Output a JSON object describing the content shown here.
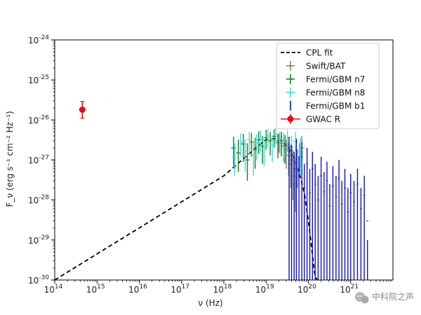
{
  "chart_data": {
    "type": "scatter",
    "title": "",
    "xlabel": "ν (Hz)",
    "ylabel": "F_ν (erg s⁻¹ cm⁻² Hz⁻¹)",
    "xscale": "log",
    "yscale": "log",
    "xlim": [
      100000000000000.0,
      1e+22
    ],
    "ylim": [
      1e-30,
      1e-24
    ],
    "x_tick_exponents": [
      14,
      15,
      16,
      17,
      18,
      19,
      20,
      21
    ],
    "y_tick_exponents": [
      -30,
      -29,
      -28,
      -27,
      -26,
      -25,
      -24
    ],
    "x_tick_base": "10",
    "y_tick_base": "10",
    "grid": false,
    "legend_placement": "top-right",
    "legend": [
      {
        "label": "CPL fit",
        "style": "dashed-line",
        "color": "#000000"
      },
      {
        "label": "Swift/BAT",
        "style": "errorbar-plus",
        "color": "#808080"
      },
      {
        "label": "Fermi/GBM n7",
        "style": "errorbar-plus",
        "color": "#1a7a1a"
      },
      {
        "label": "Fermi/GBM n8",
        "style": "errorbar-plus",
        "color": "#3ae0e0"
      },
      {
        "label": "Fermi/GBM b1",
        "style": "errorbar-dot",
        "color": "#1010c8"
      },
      {
        "label": "GWAC R",
        "style": "errorbar-marker",
        "color": "#e01010"
      }
    ],
    "series": [
      {
        "name": "CPL fit",
        "kind": "line",
        "color": "#000000",
        "x": [
          100000000000000.0,
          1000000000000000.0,
          1e+16,
          1e+17,
          1e+18,
          3e+18,
          6e+18,
          1e+19,
          1.6e+19,
          2.5e+19,
          4e+19,
          6e+19,
          8e+19,
          1e+20,
          1.2e+20,
          1.4e+20,
          1.6e+20
        ],
        "y": [
          1e-30,
          4.5e-30,
          2e-29,
          9e-29,
          4e-28,
          1.1e-27,
          2.1e-27,
          3.2e-27,
          3.4e-27,
          2.9e-27,
          1.5e-27,
          5e-28,
          1.5e-28,
          3e-29,
          6e-30,
          1.5e-30,
          1e-30
        ]
      },
      {
        "name": "Swift/BAT",
        "kind": "errorbar",
        "color": "#808080",
        "x": [
          2e+19,
          2.3e+19,
          2.6e+19,
          3e+19,
          3.4e+19,
          3.8e+19,
          4.3e+19,
          4.9e+19,
          5.5e+19,
          6.2e+19,
          7e+19
        ],
        "y": [
          3e-27,
          2.6e-27,
          2.2e-27,
          1.8e-27,
          1.3e-27,
          8e-28,
          4e-28,
          2.5e-28,
          6e-28,
          1.2e-27,
          2e-27
        ],
        "ylo": [
          1.5e-27,
          1.2e-27,
          9e-28,
          6e-28,
          4e-28,
          2e-28,
          1e-28,
          5e-29,
          2e-28,
          5e-28,
          9e-28
        ],
        "yhi": [
          4.5e-27,
          4e-27,
          3.6e-27,
          3.2e-27,
          2.8e-27,
          2.4e-27,
          1.8e-27,
          1.2e-27,
          1.8e-27,
          2.6e-27,
          4e-27
        ]
      },
      {
        "name": "Fermi/GBM n7",
        "kind": "errorbar",
        "color": "#1a7a1a",
        "x": [
          1.7e+18,
          2.2e+18,
          2.9e+18,
          3.6e+18,
          4.5e+18,
          5.5e+18,
          6.7e+18,
          8.2e+18,
          1e+19,
          1.25e+19,
          1.55e+19,
          1.9e+19,
          2.3e+19,
          2.8e+19
        ],
        "y": [
          2e-27,
          1.5e-27,
          2.5e-27,
          1e-27,
          2.8e-27,
          1.8e-27,
          3.2e-27,
          2.2e-27,
          3.6e-27,
          3e-27,
          3.9e-27,
          2.7e-27,
          3.1e-27,
          2.3e-27
        ],
        "ylo": [
          7e-28,
          5e-28,
          9e-28,
          3e-28,
          1.2e-27,
          6e-28,
          1.4e-27,
          8e-28,
          1.8e-27,
          1.3e-27,
          2e-27,
          1.1e-27,
          1.3e-27,
          8e-28
        ],
        "yhi": [
          3.8e-27,
          3.2e-27,
          4.5e-27,
          2.6e-27,
          4.8e-27,
          3.6e-27,
          5.2e-27,
          4e-27,
          5.6e-27,
          5e-27,
          5.8e-27,
          4.6e-27,
          5e-27,
          4.2e-27
        ]
      },
      {
        "name": "Fermi/GBM n8",
        "kind": "errorbar",
        "color": "#3ae0e0",
        "x": [
          1.8e+18,
          2.5e+18,
          3.2e+18,
          4e+18,
          5e+18,
          6e+18,
          7.4e+18,
          9e+18,
          1.1e+19,
          1.4e+19,
          1.7e+19,
          2.1e+19,
          2.6e+19,
          3.2e+19,
          4e+19,
          5e+19,
          6.5e+19
        ],
        "y": [
          1.2e-27,
          2.8e-27,
          1.6e-27,
          3.2e-27,
          1.3e-27,
          2.6e-27,
          3.5e-27,
          1.9e-27,
          4e-27,
          2.4e-27,
          4.3e-27,
          3.3e-27,
          2.8e-27,
          3.6e-27,
          2.1e-27,
          2.9e-27,
          1.6e-27
        ],
        "ylo": [
          4e-28,
          1.2e-27,
          5e-28,
          1.4e-27,
          4e-28,
          1e-27,
          1.6e-27,
          7e-28,
          2e-27,
          9e-28,
          2.3e-27,
          1.5e-27,
          1.1e-27,
          1.6e-27,
          7e-28,
          1e-27,
          4e-28
        ],
        "yhi": [
          2.6e-27,
          4.6e-27,
          3.2e-27,
          5e-27,
          3e-27,
          4.4e-27,
          5.4e-27,
          3.8e-27,
          6e-27,
          4.2e-27,
          6.4e-27,
          5.2e-27,
          4.8e-27,
          5.6e-27,
          4e-27,
          5e-27,
          3.6e-27
        ]
      },
      {
        "name": "Fermi/GBM b1",
        "kind": "errorbar",
        "color": "#1010c8",
        "x": [
          3.5e+19,
          4e+19,
          4.6e+19,
          5.2e+19,
          6e+19,
          7e+19,
          8e+19,
          9.3e+19,
          1.08e+20,
          1.25e+20,
          1.45e+20,
          1.7e+20,
          2e+20,
          2.35e+20,
          2.75e+20,
          3.2e+20,
          3.8e+20,
          4.5e+20,
          5.3e+20,
          6.2e+20,
          7.3e+20,
          8.6e+20,
          1e+21,
          1.2e+21,
          1.45e+21,
          1.75e+21,
          2.1e+21,
          2.5e+21
        ],
        "y": [
          2e-27,
          1e-27,
          6e-28,
          1.8e-27,
          4e-28,
          1.2e-27,
          2e-28,
          8e-28,
          1.5e-28,
          6e-28,
          2.5e-28,
          1e-28,
          4e-28,
          1.6e-28,
          3e-28,
          7e-29,
          2.2e-28,
          1.2e-28,
          3.5e-28,
          8e-29,
          2e-28,
          5e-29,
          1.5e-28,
          9e-29,
          2.5e-28,
          6e-29,
          1.3e-28,
          3e-29
        ],
        "ylo": [
          1e-30,
          1e-30,
          1e-30,
          1e-30,
          1e-30,
          1e-30,
          1e-30,
          1e-30,
          1e-30,
          1e-30,
          1e-30,
          1e-30,
          1e-30,
          1e-30,
          1e-30,
          1e-30,
          1e-30,
          1e-30,
          1e-30,
          1e-30,
          1e-30,
          1e-30,
          1e-30,
          1e-30,
          1e-30,
          1e-30,
          1e-30,
          1e-30
        ],
        "yhi": [
          3.8e-27,
          2.4e-27,
          1.6e-27,
          3.4e-27,
          1.2e-27,
          2.8e-27,
          8e-28,
          2e-27,
          6e-28,
          1.6e-27,
          8e-28,
          4e-28,
          1.2e-27,
          5e-28,
          9e-28,
          2.5e-28,
          7e-28,
          4e-28,
          1e-27,
          3e-28,
          6e-28,
          2e-28,
          4.5e-28,
          3e-28,
          6e-28,
          2e-28,
          4e-28,
          1e-29
        ]
      },
      {
        "name": "GWAC R",
        "kind": "errorbar",
        "color": "#e01010",
        "x": [
          450000000000000.0
        ],
        "y": [
          1.8e-26
        ],
        "ylo": [
          1.1e-26
        ],
        "yhi": [
          2.9e-26
        ]
      }
    ]
  },
  "watermark": {
    "text": "中科院之声",
    "icon": "wechat-logo-icon"
  }
}
